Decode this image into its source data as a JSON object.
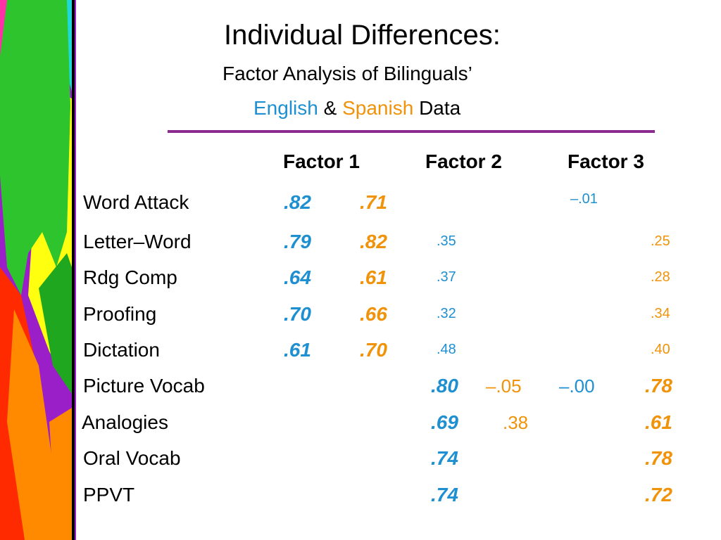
{
  "colors": {
    "english": "#1e8fd0",
    "spanish": "#f0930a",
    "rule": "#8b2a90"
  },
  "title": {
    "main": "Individual Differences:",
    "subtitle": "Factor Analysis of Bilinguals’",
    "english_word": "English",
    "amp": "&",
    "spanish_word": "Spanish",
    "data_word": "Data"
  },
  "headers": [
    "Factor 1",
    "Factor 2",
    "Factor 3"
  ],
  "rows": [
    {
      "label": "Word Attack",
      "f1_en": ".82",
      "f1_sp": ".71",
      "f3_en": "–.01"
    },
    {
      "label": "Letter–Word",
      "f1_en": ".79",
      "f1_sp": ".82",
      "f2_en": ".35",
      "f3_sp": ".25"
    },
    {
      "label": "Rdg Comp",
      "f1_en": ".64",
      "f1_sp": ".61",
      "f2_en": ".37",
      "f3_sp": ".28"
    },
    {
      "label": "Proofing",
      "f1_en": ".70",
      "f1_sp": ".66",
      "f2_en": ".32",
      "f3_sp": ".34"
    },
    {
      "label": "Dictation",
      "f1_en": ".61",
      "f1_sp": ".70",
      "f2_en": ".48",
      "f3_sp": ".40"
    },
    {
      "label": "Picture Vocab",
      "f2_en": ".80",
      "f2_sp": "–.05",
      "f3_en": "–.00",
      "f3_sp": ".78"
    },
    {
      "label": "Analogies",
      "f2_en": ".69",
      "f2_sp": ".38",
      "f3_sp": ".61"
    },
    {
      "label": "Oral Vocab",
      "f2_en": ".74",
      "f3_sp": ".78"
    },
    {
      "label": "PPVT",
      "f2_en": ".74",
      "f3_sp": ".72"
    }
  ]
}
